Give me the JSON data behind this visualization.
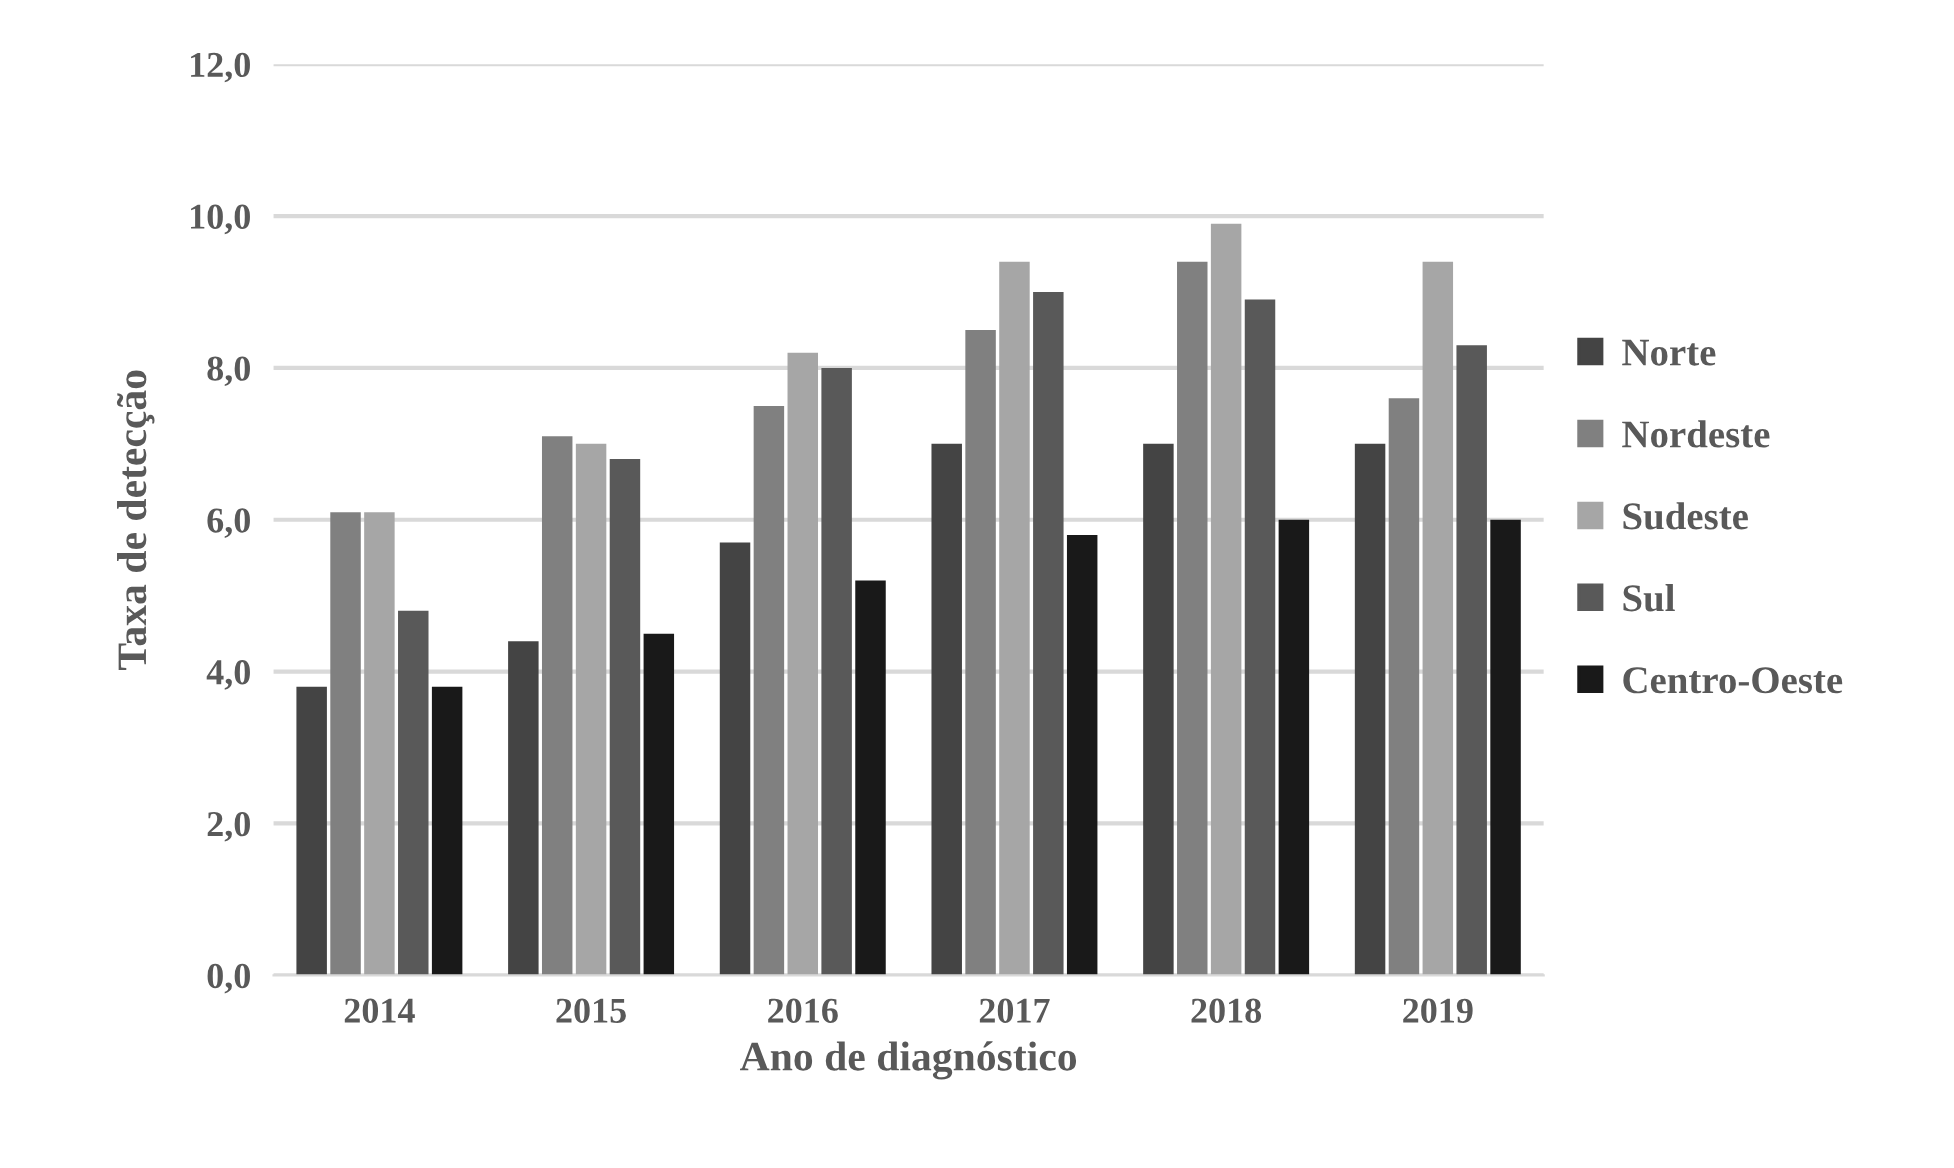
{
  "chart_data": {
    "type": "bar",
    "xlabel": "Ano de diagnóstico",
    "ylabel": "Taxa de detecção",
    "categories": [
      "2014",
      "2015",
      "2016",
      "2017",
      "2018",
      "2019"
    ],
    "series": [
      {
        "name": "Norte",
        "color": "#444444",
        "values": [
          3.8,
          4.4,
          5.7,
          7.0,
          7.0,
          7.0
        ]
      },
      {
        "name": "Nordeste",
        "color": "#808080",
        "values": [
          6.1,
          7.1,
          7.5,
          8.5,
          9.4,
          7.6
        ]
      },
      {
        "name": "Sudeste",
        "color": "#a6a6a6",
        "values": [
          6.1,
          7.0,
          8.2,
          9.4,
          9.9,
          9.4
        ]
      },
      {
        "name": "Sul",
        "color": "#595959",
        "values": [
          4.8,
          6.8,
          8.0,
          9.0,
          8.9,
          8.3
        ]
      },
      {
        "name": "Centro-Oeste",
        "color": "#191919",
        "values": [
          3.8,
          4.5,
          5.2,
          5.8,
          6.0,
          6.0
        ]
      }
    ],
    "ylim": [
      0,
      12
    ],
    "yticks": [
      {
        "value": 0,
        "label": "0,0"
      },
      {
        "value": 2,
        "label": "2,0"
      },
      {
        "value": 4,
        "label": "4,0"
      },
      {
        "value": 6,
        "label": "6,0"
      },
      {
        "value": 8,
        "label": "8,0"
      },
      {
        "value": 10,
        "label": "10,0"
      },
      {
        "value": 12,
        "label": "12,0"
      }
    ],
    "grid": "y",
    "legend": "right"
  }
}
